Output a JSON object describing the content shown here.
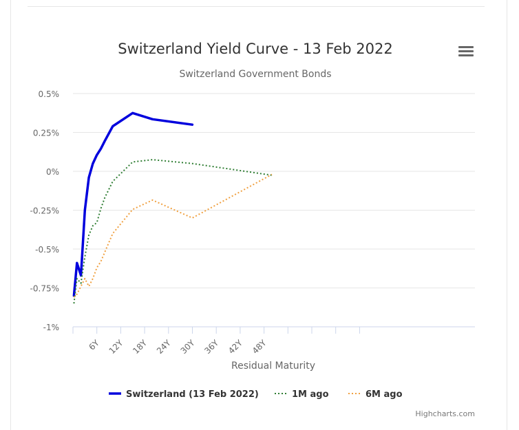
{
  "chart_data": {
    "type": "line",
    "title": "Switzerland Yield Curve - 13 Feb 2022",
    "subtitle": "Switzerland Government Bonds",
    "xlabel": "Residual Maturity",
    "ylabel": "",
    "x_unit": "years",
    "xlim": [
      0,
      52
    ],
    "ylim": [
      -1,
      0.5
    ],
    "x_ticks": [
      6,
      12,
      18,
      24,
      30,
      36,
      42,
      48
    ],
    "x_tick_labels": [
      "6Y",
      "12Y",
      "18Y",
      "24Y",
      "30Y",
      "36Y",
      "42Y",
      "48Y"
    ],
    "y_ticks": [
      0.5,
      0.25,
      0,
      -0.25,
      -0.5,
      -0.75,
      -1
    ],
    "y_tick_labels": [
      "0.5%",
      "0.25%",
      "0%",
      "-0.25%",
      "-0.5%",
      "-0.75%",
      "-1%"
    ],
    "grid": true,
    "legend_position": "bottom-center",
    "series": [
      {
        "name": "Switzerland (13 Feb 2022)",
        "color": "#0000dd",
        "style": "solid",
        "points": [
          [
            0.25,
            -0.8
          ],
          [
            1,
            -0.59
          ],
          [
            2,
            -0.67
          ],
          [
            3,
            -0.25
          ],
          [
            4,
            -0.04
          ],
          [
            5,
            0.05
          ],
          [
            6,
            0.105
          ],
          [
            7,
            0.145
          ],
          [
            8,
            0.195
          ],
          [
            10,
            0.29
          ],
          [
            15,
            0.375
          ],
          [
            20,
            0.335
          ],
          [
            30,
            0.3
          ]
        ]
      },
      {
        "name": "1M ago",
        "color": "#2e7d32",
        "style": "dotted",
        "points": [
          [
            0.25,
            -0.85
          ],
          [
            1,
            -0.69
          ],
          [
            2,
            -0.72
          ],
          [
            3,
            -0.55
          ],
          [
            4,
            -0.41
          ],
          [
            5,
            -0.35
          ],
          [
            6,
            -0.33
          ],
          [
            7,
            -0.24
          ],
          [
            8,
            -0.17
          ],
          [
            10,
            -0.065
          ],
          [
            15,
            0.06
          ],
          [
            20,
            0.075
          ],
          [
            30,
            0.05
          ],
          [
            50,
            -0.025
          ]
        ]
      },
      {
        "name": "6M ago",
        "color": "#f0a040",
        "style": "dotted",
        "points": [
          [
            0.25,
            -0.81
          ],
          [
            1,
            -0.79
          ],
          [
            2,
            -0.74
          ],
          [
            3,
            -0.69
          ],
          [
            4,
            -0.74
          ],
          [
            5,
            -0.69
          ],
          [
            6,
            -0.62
          ],
          [
            7,
            -0.58
          ],
          [
            8,
            -0.52
          ],
          [
            10,
            -0.4
          ],
          [
            15,
            -0.245
          ],
          [
            20,
            -0.185
          ],
          [
            30,
            -0.3
          ],
          [
            50,
            -0.02
          ]
        ]
      }
    ]
  },
  "ui": {
    "credits": "Highcharts.com",
    "menu_icon": "hamburger-menu-icon"
  }
}
